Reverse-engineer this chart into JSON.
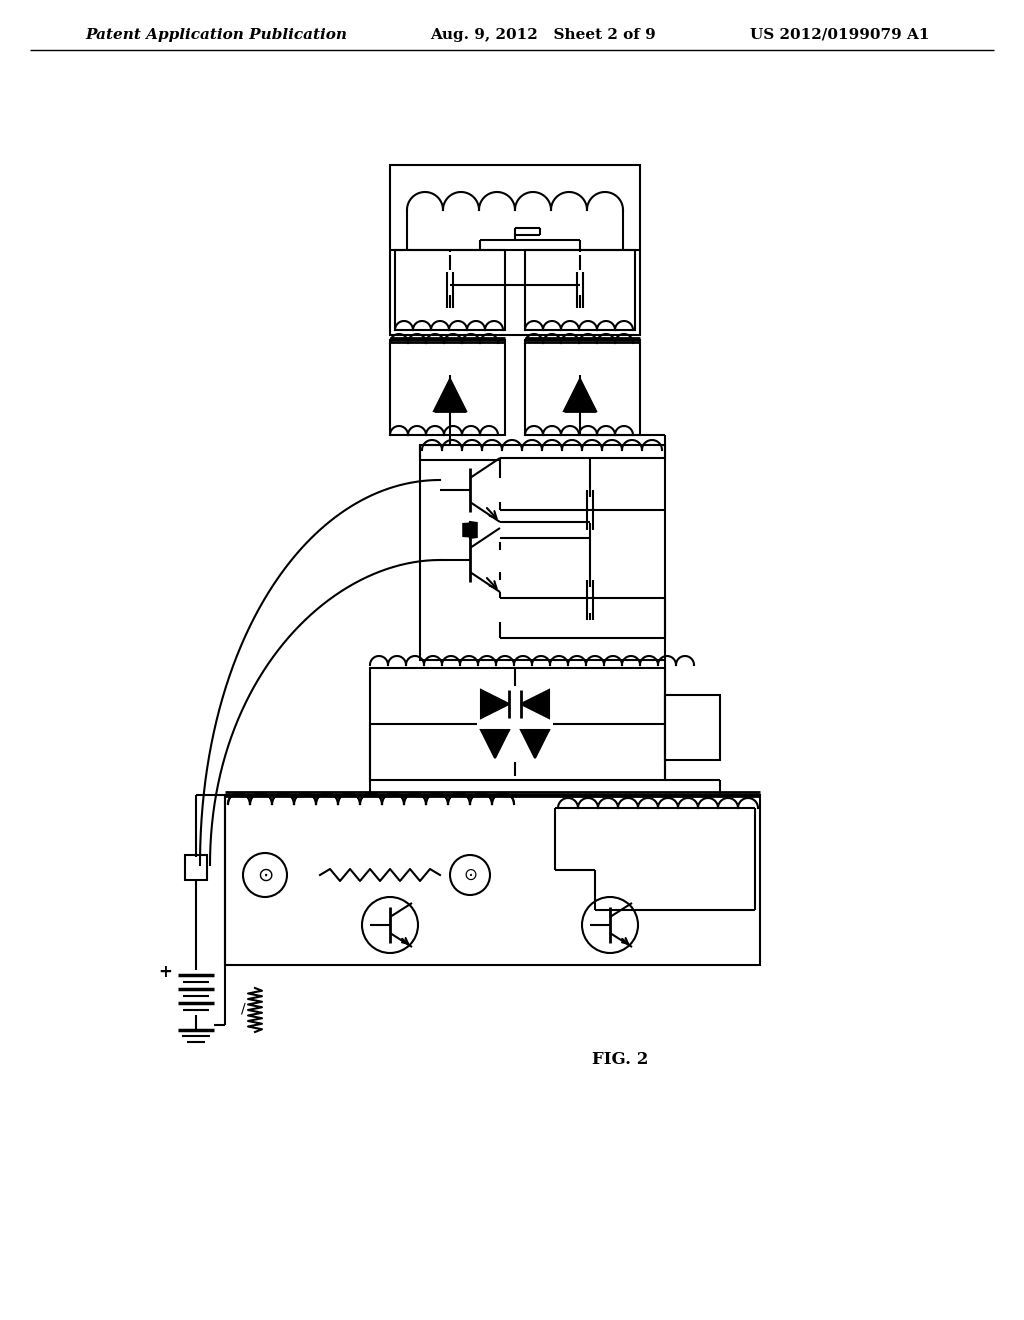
{
  "title_left": "Patent Application Publication",
  "title_center": "Aug. 9, 2012   Sheet 2 of 9",
  "title_right": "US 2012/0199079 A1",
  "fig_label": "FIG. 2",
  "bg_color": "#ffffff",
  "line_color": "#000000",
  "line_width": 1.5,
  "title_fontsize": 11,
  "fig_label_fontsize": 12
}
